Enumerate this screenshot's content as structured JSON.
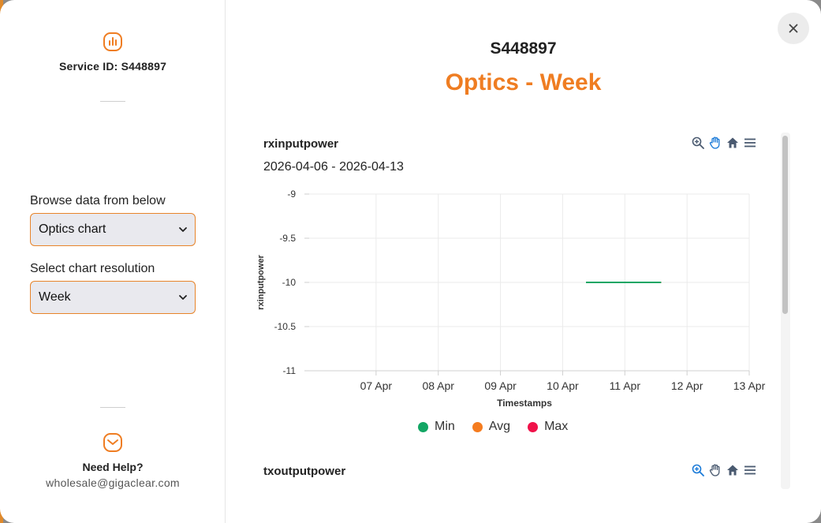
{
  "sidebar": {
    "service_id_label": "Service ID: S448897",
    "browse_label": "Browse data from below",
    "browse_selected": "Optics chart",
    "resolution_label": "Select chart resolution",
    "resolution_selected": "Week",
    "help_title": "Need Help?",
    "help_email": "wholesale@gigaclear.com",
    "accent_color": "#ef7d22"
  },
  "header": {
    "title": "S448897",
    "subtitle": "Optics - Week"
  },
  "charts": [
    {
      "title": "rxinputpower",
      "date_range": "2026-04-06 - 2026-04-13",
      "toolbar": [
        "zoom-in-icon",
        "pan-hand-icon",
        "home-icon",
        "menu-icon"
      ]
    },
    {
      "title": "txoutputpower",
      "toolbar": [
        "zoom-in-icon",
        "pan-hand-icon",
        "home-icon",
        "menu-icon"
      ]
    }
  ],
  "chart_data": {
    "type": "line",
    "title": "rxinputpower",
    "subtitle": "2026-04-06 - 2026-04-13",
    "xlabel": "Timestamps",
    "ylabel": "rxinputpower",
    "x_ticks": [
      "07 Apr",
      "08 Apr",
      "09 Apr",
      "10 Apr",
      "11 Apr",
      "12 Apr",
      "13 Apr"
    ],
    "y_ticks": [
      "-9",
      "-9.5",
      "-10",
      "-10.5",
      "-11"
    ],
    "ylim": [
      -11,
      -9
    ],
    "xlim": [
      "2026-04-06T00:00",
      "2026-04-13T00:00"
    ],
    "grid": true,
    "legend_position": "bottom",
    "series": [
      {
        "name": "Min",
        "color": "#13a664",
        "points": [
          [
            "2026-04-10T09:00",
            -10
          ],
          [
            "2026-04-11T14:00",
            -10
          ]
        ]
      },
      {
        "name": "Avg",
        "color": "#f57c1f",
        "points": [
          [
            "2026-04-10T09:00",
            -10
          ],
          [
            "2026-04-11T14:00",
            -10
          ]
        ]
      },
      {
        "name": "Max",
        "color": "#f0124a",
        "points": [
          [
            "2026-04-10T09:00",
            -10
          ],
          [
            "2026-04-11T14:00",
            -10
          ]
        ]
      }
    ]
  }
}
